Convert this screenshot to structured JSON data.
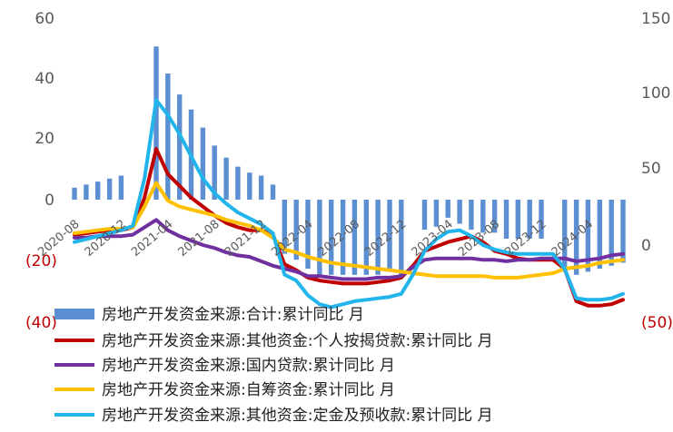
{
  "chart_data": {
    "type": "bar+line",
    "title": "",
    "y_left": {
      "ticks": [
        "60",
        "40",
        "20",
        "0",
        "(20)",
        "(40)"
      ],
      "range": [
        -40,
        60
      ]
    },
    "y_right": {
      "ticks": [
        "150",
        "100",
        "50",
        "0",
        "(50)"
      ],
      "range": [
        -50,
        150
      ]
    },
    "x_tick_labels": [
      "2020-08",
      "2020-12",
      "2021-04",
      "2021-08",
      "2021-12",
      "2022-04",
      "2022-08",
      "2022-12",
      "2023-04",
      "2023-08",
      "2023-12",
      "2024-04"
    ],
    "months": [
      "2020-08",
      "2020-09",
      "2020-10",
      "2020-11",
      "2020-12",
      "2021-01",
      "2021-02",
      "2021-03",
      "2021-04",
      "2021-05",
      "2021-06",
      "2021-07",
      "2021-08",
      "2021-09",
      "2021-10",
      "2021-11",
      "2021-12",
      "2022-01",
      "2022-02",
      "2022-03",
      "2022-04",
      "2022-05",
      "2022-06",
      "2022-07",
      "2022-08",
      "2022-09",
      "2022-10",
      "2022-11",
      "2022-12",
      "2023-01",
      "2023-02",
      "2023-03",
      "2023-04",
      "2023-05",
      "2023-06",
      "2023-07",
      "2023-08",
      "2023-09",
      "2023-10",
      "2023-11",
      "2023-12",
      "2024-01",
      "2024-02",
      "2024-03",
      "2024-04",
      "2024-05",
      "2024-06",
      "2024-07"
    ],
    "bar_series": {
      "name": "房地产开发资金来源:合计:累计同比 月",
      "color": "#5b8fd1",
      "axis": "left",
      "values": [
        4.0,
        5.0,
        6.0,
        7.0,
        8.0,
        null,
        null,
        51.0,
        42.0,
        35.0,
        30.0,
        24.0,
        18.0,
        14.0,
        11.0,
        9.0,
        8.0,
        5.0,
        -18.0,
        -20.0,
        -23.0,
        -25.0,
        -25.0,
        -25.0,
        -25.0,
        -25.0,
        -25.0,
        -24.0,
        -25.0,
        null,
        -10.0,
        -9.0,
        -6.0,
        -8.0,
        -10.0,
        -11.0,
        -11.0,
        -13.0,
        -13.0,
        -13.0,
        -13.0,
        null,
        -24.0,
        -25.0,
        -24.0,
        -23.0,
        -22.0,
        -21.0
      ]
    },
    "line_series": [
      {
        "name": "房地产开发资金来源:其他资金:个人按揭贷款:累计同比 月",
        "color": "#c00000",
        "axis": "right",
        "values": [
          7,
          8,
          9,
          10,
          10,
          12,
          32,
          65,
          48,
          40,
          32,
          26,
          20,
          15,
          12,
          10,
          10,
          7,
          -13,
          -17,
          -22,
          -24,
          -25,
          -26,
          -26,
          -26,
          -25,
          -24,
          -22,
          -14,
          -4,
          -1,
          2,
          4,
          6,
          2,
          -4,
          -6,
          -9,
          -10,
          -10,
          -10,
          -16,
          -38,
          -41,
          -41,
          -40,
          -37
        ]
      },
      {
        "name": "房地产开发资金来源:国内贷款:累计同比 月",
        "color": "#7030a0",
        "axis": "right",
        "values": [
          5,
          5,
          6,
          6,
          6,
          7,
          12,
          17,
          10,
          6,
          3,
          0,
          -2,
          -5,
          -7,
          -8,
          -11,
          -14,
          -16,
          -18,
          -21,
          -21,
          -22,
          -23,
          -23,
          -23,
          -22,
          -22,
          -21,
          -15,
          -10,
          -9,
          -9,
          -9,
          -9,
          -10,
          -10,
          -11,
          -10,
          -10,
          -9,
          -9,
          -9,
          -11,
          -10,
          -9,
          -7,
          -6
        ]
      },
      {
        "name": "房地产开发资金来源:自筹资金:累计同比 月",
        "color": "#ffc000",
        "axis": "right",
        "values": [
          8,
          9,
          10,
          11,
          11,
          12,
          26,
          42,
          30,
          26,
          24,
          22,
          20,
          17,
          15,
          13,
          10,
          5,
          -3,
          -5,
          -8,
          -10,
          -12,
          -13,
          -14,
          -15,
          -16,
          -17,
          -18,
          -19,
          -20,
          -21,
          -21,
          -21,
          -21,
          -21,
          -22,
          -22,
          -22,
          -21,
          -20,
          -19,
          -16,
          -15,
          -14,
          -12,
          -11,
          -10
        ]
      },
      {
        "name": "房地产开发资金来源:其他资金:定金及预收款:累计同比 月",
        "color": "#21b5ec",
        "axis": "right",
        "values": [
          2,
          4,
          6,
          8,
          10,
          13,
          45,
          98,
          88,
          75,
          60,
          45,
          35,
          28,
          22,
          18,
          14,
          8,
          -20,
          -24,
          -34,
          -40,
          -42,
          -40,
          -38,
          -37,
          -36,
          -35,
          -33,
          -20,
          -4,
          4,
          9,
          10,
          6,
          0,
          -3,
          -5,
          -6,
          -6,
          -6,
          -6,
          -16,
          -36,
          -37,
          -37,
          -36,
          -33
        ]
      }
    ],
    "legend": [
      "房地产开发资金来源:合计:累计同比 月",
      "房地产开发资金来源:其他资金:个人按揭贷款:累计同比 月",
      "房地产开发资金来源:国内贷款:累计同比 月",
      "房地产开发资金来源:自筹资金:累计同比 月",
      "房地产开发资金来源:其他资金:定金及预收款:累计同比 月"
    ],
    "legend_placement": "bottom",
    "grid": false
  }
}
